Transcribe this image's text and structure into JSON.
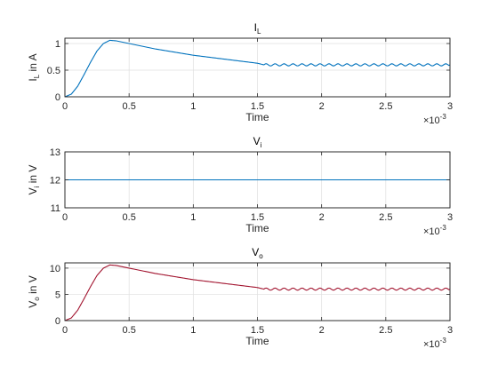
{
  "chart_data": [
    {
      "type": "line",
      "title": {
        "base": "I",
        "sub": "L"
      },
      "ylabel": {
        "base": "I",
        "sub": "L",
        "rest": " in A"
      },
      "xlabel": "Time",
      "x_exponent": {
        "base": "×10",
        "sup": "-3"
      },
      "xlim": [
        0,
        3
      ],
      "ylim": [
        0,
        1.1
      ],
      "xticks": [
        0,
        0.5,
        1,
        1.5,
        2,
        2.5,
        3
      ],
      "xtick_labels": [
        "0",
        "0.5",
        "1",
        "1.5",
        "2",
        "2.5",
        "3"
      ],
      "yticks": [
        0,
        0.5,
        1
      ],
      "ytick_labels": [
        "0",
        "0.5",
        "1"
      ],
      "grid": true,
      "color": "#0072BD",
      "series": [
        {
          "x": [
            0,
            0.05,
            0.1,
            0.15,
            0.2,
            0.25,
            0.3,
            0.35,
            0.4,
            0.5,
            0.6,
            0.7,
            0.8,
            0.9,
            1.0,
            1.1,
            1.2,
            1.3,
            1.4,
            1.5,
            1.55,
            1.6,
            1.7,
            1.8,
            1.9,
            2.0,
            2.1,
            2.2,
            2.3,
            2.4,
            2.5,
            2.6,
            2.7,
            2.8,
            2.9,
            3.0
          ],
          "values": [
            0,
            0.05,
            0.2,
            0.42,
            0.65,
            0.86,
            1.0,
            1.06,
            1.05,
            1.0,
            0.95,
            0.9,
            0.86,
            0.82,
            0.78,
            0.75,
            0.72,
            0.69,
            0.66,
            0.63,
            0.6,
            0.6,
            0.6,
            0.6,
            0.6,
            0.6,
            0.6,
            0.6,
            0.6,
            0.6,
            0.6,
            0.6,
            0.6,
            0.6,
            0.6,
            0.6
          ],
          "ripple": {
            "from": 1.55,
            "amplitude": 0.02,
            "period": 0.07
          }
        }
      ]
    },
    {
      "type": "line",
      "title": {
        "base": "V",
        "sub": "i"
      },
      "ylabel": {
        "base": "V",
        "sub": "i",
        "rest": " in V"
      },
      "xlabel": "Time",
      "x_exponent": {
        "base": "×10",
        "sup": "-3"
      },
      "xlim": [
        0,
        3
      ],
      "ylim": [
        11,
        13
      ],
      "xticks": [
        0,
        0.5,
        1,
        1.5,
        2,
        2.5,
        3
      ],
      "xtick_labels": [
        "0",
        "0.5",
        "1",
        "1.5",
        "2",
        "2.5",
        "3"
      ],
      "yticks": [
        11,
        12,
        13
      ],
      "ytick_labels": [
        "11",
        "12",
        "13"
      ],
      "grid": true,
      "color": "#0072BD",
      "series": [
        {
          "x": [
            0,
            3.0
          ],
          "values": [
            12,
            12
          ]
        }
      ]
    },
    {
      "type": "line",
      "title": {
        "base": "V",
        "sub": "o"
      },
      "ylabel": {
        "base": "V",
        "sub": "o",
        "rest": " in V"
      },
      "xlabel": "Time",
      "x_exponent": {
        "base": "×10",
        "sup": "-3"
      },
      "xlim": [
        0,
        3
      ],
      "ylim": [
        0,
        11
      ],
      "xticks": [
        0,
        0.5,
        1,
        1.5,
        2,
        2.5,
        3
      ],
      "xtick_labels": [
        "0",
        "0.5",
        "1",
        "1.5",
        "2",
        "2.5",
        "3"
      ],
      "yticks": [
        0,
        5,
        10
      ],
      "ytick_labels": [
        "0",
        "5",
        "10"
      ],
      "grid": true,
      "color": "#A2142F",
      "series": [
        {
          "x": [
            0,
            0.05,
            0.1,
            0.15,
            0.2,
            0.25,
            0.3,
            0.35,
            0.4,
            0.5,
            0.6,
            0.7,
            0.8,
            0.9,
            1.0,
            1.1,
            1.2,
            1.3,
            1.4,
            1.5,
            1.55,
            1.6,
            1.7,
            1.8,
            1.9,
            2.0,
            2.1,
            2.2,
            2.3,
            2.4,
            2.5,
            2.6,
            2.7,
            2.8,
            2.9,
            3.0
          ],
          "values": [
            0,
            0.5,
            2.0,
            4.2,
            6.5,
            8.6,
            10.0,
            10.6,
            10.5,
            10.0,
            9.5,
            9.0,
            8.6,
            8.2,
            7.8,
            7.5,
            7.2,
            6.9,
            6.6,
            6.3,
            6.0,
            6.0,
            6.0,
            6.0,
            6.0,
            6.0,
            6.0,
            6.0,
            6.0,
            6.0,
            6.0,
            6.0,
            6.0,
            6.0,
            6.0,
            6.0
          ],
          "ripple": {
            "from": 1.55,
            "amplitude": 0.2,
            "period": 0.07
          }
        }
      ]
    }
  ]
}
